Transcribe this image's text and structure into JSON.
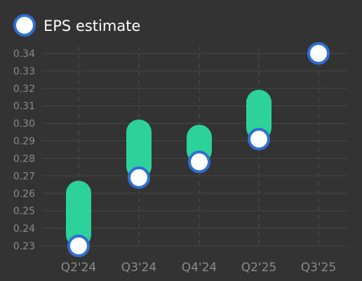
{
  "chart_data": {
    "type": "scatter",
    "categories": [
      "Q2'24",
      "Q3'24",
      "Q4'24",
      "Q2'25",
      "Q3'25"
    ],
    "series": [
      {
        "name": "EPS estimate",
        "values": [
          0.23,
          0.269,
          0.278,
          0.291,
          0.34
        ]
      }
    ],
    "ranges": [
      {
        "low": 0.23,
        "high": 0.26
      },
      {
        "low": 0.269,
        "high": 0.295
      },
      {
        "low": 0.278,
        "high": 0.292
      },
      {
        "low": 0.291,
        "high": 0.312
      },
      null
    ],
    "yticks": [
      0.23,
      0.24,
      0.25,
      0.26,
      0.27,
      0.28,
      0.29,
      0.3,
      0.31,
      0.32,
      0.33,
      0.34
    ],
    "ytick_labels": [
      "0.23",
      "0.24",
      "0.25",
      "0.26",
      "0.27",
      "0.28",
      "0.29",
      "0.30",
      "0.31",
      "0.32",
      "0.33",
      "0.34"
    ],
    "ylim": [
      0.23,
      0.34
    ],
    "grid": true,
    "legend": "top-left",
    "colors": {
      "background": "#333333",
      "range_bar": "#2dd19a",
      "marker_fill": "#ffffff",
      "marker_stroke": "#2f6fd0",
      "grid": "#474747"
    }
  }
}
